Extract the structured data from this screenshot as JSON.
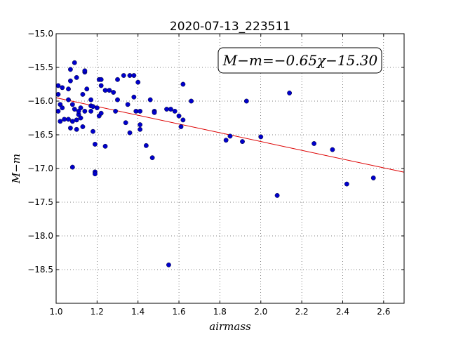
{
  "chart_data": {
    "type": "scatter",
    "title": "2020-07-13_223511",
    "xlabel": "airmass",
    "ylabel": "M−m",
    "xlim": [
      1.0,
      2.7
    ],
    "ylim": [
      -15.0,
      -19.0
    ],
    "y_inverted": true,
    "grid": true,
    "xticks": [
      "1.0",
      "1.2",
      "1.4",
      "1.6",
      "1.8",
      "2.0",
      "2.2",
      "2.4",
      "2.6"
    ],
    "yticks": [
      "−15.0",
      "−15.5",
      "−16.0",
      "−16.5",
      "−17.0",
      "−17.5",
      "−18.0",
      "−18.5"
    ],
    "annotation": "M−m=−0.65χ−15.30",
    "fit": {
      "slope": -0.65,
      "intercept": -15.3,
      "color": "#dd0000"
    },
    "point_color": "#0000cc",
    "points": [
      [
        1.01,
        -15.77
      ],
      [
        1.01,
        -15.9
      ],
      [
        1.01,
        -16.15
      ],
      [
        1.02,
        -16.3
      ],
      [
        1.02,
        -16.05
      ],
      [
        1.03,
        -16.1
      ],
      [
        1.03,
        -15.8
      ],
      [
        1.04,
        -16.27
      ],
      [
        1.06,
        -16.27
      ],
      [
        1.06,
        -15.98
      ],
      [
        1.06,
        -15.82
      ],
      [
        1.07,
        -15.53
      ],
      [
        1.07,
        -15.7
      ],
      [
        1.07,
        -16.4
      ],
      [
        1.08,
        -16.98
      ],
      [
        1.08,
        -16.05
      ],
      [
        1.08,
        -16.3
      ],
      [
        1.09,
        -15.43
      ],
      [
        1.09,
        -16.12
      ],
      [
        1.1,
        -15.65
      ],
      [
        1.1,
        -16.42
      ],
      [
        1.1,
        -16.28
      ],
      [
        1.11,
        -16.2
      ],
      [
        1.11,
        -16.15
      ],
      [
        1.12,
        -16.1
      ],
      [
        1.12,
        -16.25
      ],
      [
        1.13,
        -16.38
      ],
      [
        1.13,
        -15.9
      ],
      [
        1.14,
        -16.15
      ],
      [
        1.14,
        -15.57
      ],
      [
        1.14,
        -15.55
      ],
      [
        1.15,
        -15.82
      ],
      [
        1.17,
        -15.98
      ],
      [
        1.17,
        -16.15
      ],
      [
        1.17,
        -16.07
      ],
      [
        1.18,
        -16.45
      ],
      [
        1.18,
        -16.08
      ],
      [
        1.19,
        -16.64
      ],
      [
        1.19,
        -17.05
      ],
      [
        1.19,
        -17.08
      ],
      [
        1.2,
        -16.1
      ],
      [
        1.21,
        -15.68
      ],
      [
        1.21,
        -16.22
      ],
      [
        1.22,
        -15.68
      ],
      [
        1.22,
        -15.77
      ],
      [
        1.22,
        -16.18
      ],
      [
        1.24,
        -16.67
      ],
      [
        1.24,
        -15.84
      ],
      [
        1.26,
        -15.84
      ],
      [
        1.28,
        -15.87
      ],
      [
        1.29,
        -16.15
      ],
      [
        1.3,
        -15.98
      ],
      [
        1.3,
        -15.68
      ],
      [
        1.33,
        -15.62
      ],
      [
        1.34,
        -16.32
      ],
      [
        1.35,
        -16.05
      ],
      [
        1.36,
        -15.62
      ],
      [
        1.36,
        -16.47
      ],
      [
        1.38,
        -15.62
      ],
      [
        1.38,
        -15.94
      ],
      [
        1.39,
        -16.15
      ],
      [
        1.4,
        -15.72
      ],
      [
        1.41,
        -16.15
      ],
      [
        1.41,
        -16.35
      ],
      [
        1.41,
        -16.42
      ],
      [
        1.44,
        -16.66
      ],
      [
        1.46,
        -15.98
      ],
      [
        1.47,
        -16.84
      ],
      [
        1.48,
        -16.15
      ],
      [
        1.48,
        -16.17
      ],
      [
        1.54,
        -16.12
      ],
      [
        1.55,
        -18.43
      ],
      [
        1.56,
        -16.12
      ],
      [
        1.58,
        -16.15
      ],
      [
        1.6,
        -16.22
      ],
      [
        1.61,
        -16.38
      ],
      [
        1.62,
        -15.75
      ],
      [
        1.62,
        -16.28
      ],
      [
        1.66,
        -16.0
      ],
      [
        1.83,
        -16.58
      ],
      [
        1.85,
        -16.52
      ],
      [
        1.91,
        -16.6
      ],
      [
        1.93,
        -16.0
      ],
      [
        2.0,
        -16.53
      ],
      [
        2.08,
        -17.4
      ],
      [
        2.14,
        -15.88
      ],
      [
        2.26,
        -16.63
      ],
      [
        2.35,
        -16.72
      ],
      [
        2.42,
        -17.23
      ],
      [
        2.55,
        -17.14
      ]
    ]
  }
}
